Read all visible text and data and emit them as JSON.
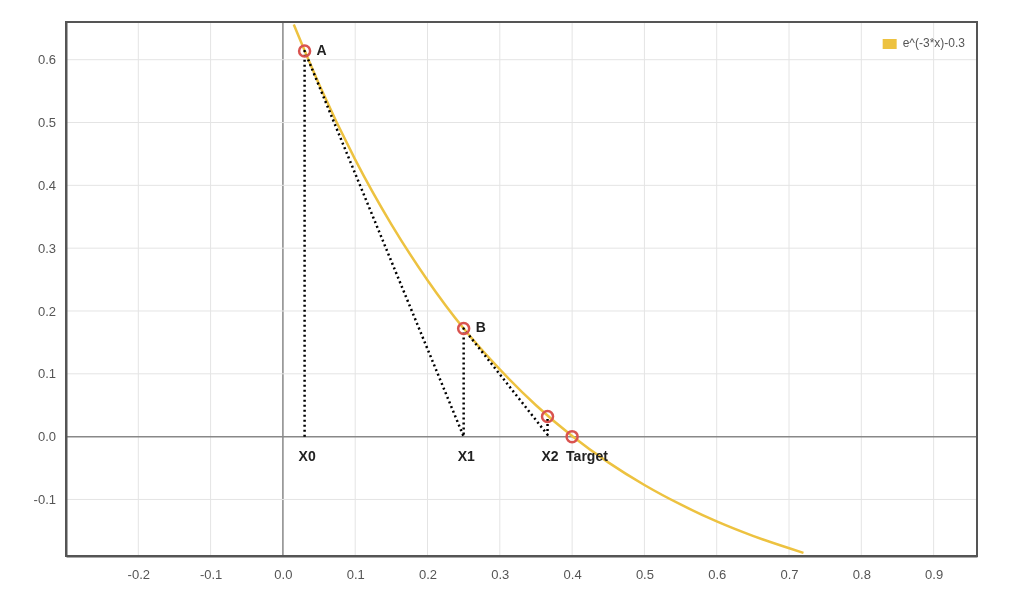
{
  "chart_data": {
    "type": "line",
    "xlim": [
      -0.3,
      0.96
    ],
    "ylim": [
      -0.19,
      0.66
    ],
    "xticks": [
      -0.2,
      -0.1,
      {
        "value": 0,
        "label": "0.0"
      },
      0.1,
      0.2,
      0.3,
      0.4,
      0.5,
      0.6,
      0.7,
      0.8,
      0.9
    ],
    "yticks": [
      -0.1,
      {
        "value": 0,
        "label": "0.0"
      },
      0.1,
      0.2,
      0.3,
      0.4,
      0.5,
      0.6
    ],
    "grid": true,
    "legend": "top right",
    "series": [
      {
        "name": "e^(-3*x)-0.3",
        "color": "#edc240",
        "x": [
          0.015,
          0.05,
          0.1,
          0.15,
          0.2,
          0.25,
          0.3,
          0.35,
          0.4,
          0.45,
          0.5,
          0.55,
          0.6,
          0.65,
          0.72
        ],
        "values": [
          0.656,
          0.561,
          0.441,
          0.338,
          0.249,
          0.172,
          0.107,
          0.05,
          0.001,
          -0.041,
          -0.077,
          -0.108,
          -0.135,
          -0.158,
          -0.185
        ]
      },
      {
        "type": "line",
        "line_style": "dotted",
        "color": "#000000",
        "x": [
          0.03,
          0.03,
          0.25,
          0.25,
          0.366,
          0.366
        ],
        "values": [
          0,
          0.614,
          0,
          0.172,
          0.003,
          0.032
        ]
      },
      {
        "type": "scatter",
        "marker": "circle",
        "color": "#d9534f",
        "x": [
          0.03,
          0.25,
          0.366,
          0.4
        ],
        "values": [
          0.614,
          0.172,
          0.032,
          0
        ]
      }
    ],
    "annotations": [
      {
        "text": "A",
        "x": 0.03,
        "y": 0.614
      },
      {
        "text": "B",
        "x": 0.25,
        "y": 0.172
      },
      {
        "text": "X0",
        "x": 0.03,
        "y": 0
      },
      {
        "text": "X1",
        "x": 0.25,
        "y": 0
      },
      {
        "text": "X2",
        "x": 0.366,
        "y": 0
      },
      {
        "text": "Target",
        "x": 0.4,
        "y": 0
      }
    ]
  }
}
